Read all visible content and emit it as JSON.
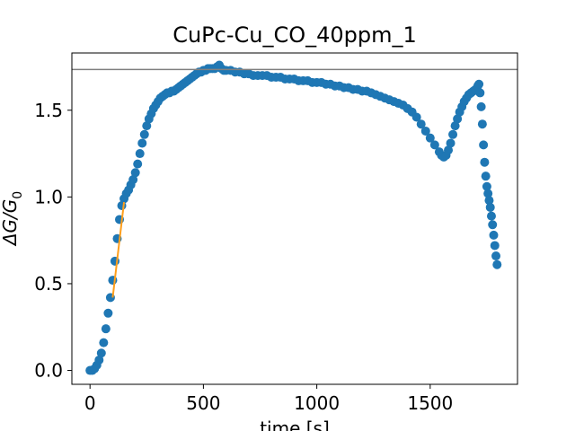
{
  "chart_data": {
    "type": "scatter",
    "title": "CuPc-Cu_CO_40ppm_1",
    "xlabel": "time [s]",
    "ylabel_main": "ΔG/G",
    "ylabel_sub": "0",
    "xlim": [
      -80,
      1885
    ],
    "ylim": [
      -0.08,
      1.83
    ],
    "xticks": [
      0,
      500,
      1000,
      1500
    ],
    "xtick_labels": [
      "0",
      "500",
      "1000",
      "1500"
    ],
    "yticks": [
      0.0,
      0.5,
      1.0,
      1.5
    ],
    "ytick_labels": [
      "0.0",
      "0.5",
      "1.0",
      "1.5"
    ],
    "grid": false,
    "colors": {
      "points": "#1f77b4",
      "fit_line": "#ff9f1c",
      "reference_line": "#808080"
    },
    "reference_line": {
      "y": 1.735
    },
    "fit_line": {
      "x": [
        100,
        150
      ],
      "y": [
        0.42,
        0.97
      ]
    },
    "series": [
      {
        "points": [
          [
            0,
            0
          ],
          [
            10,
            0
          ],
          [
            20,
            0.01
          ],
          [
            30,
            0.03
          ],
          [
            40,
            0.06
          ],
          [
            50,
            0.1
          ],
          [
            60,
            0.16
          ],
          [
            70,
            0.24
          ],
          [
            80,
            0.33
          ],
          [
            90,
            0.42
          ],
          [
            100,
            0.52
          ],
          [
            110,
            0.63
          ],
          [
            120,
            0.76
          ],
          [
            130,
            0.87
          ],
          [
            140,
            0.95
          ],
          [
            150,
            0.99
          ],
          [
            160,
            1.02
          ],
          [
            170,
            1.04
          ],
          [
            180,
            1.07
          ],
          [
            190,
            1.1
          ],
          [
            200,
            1.14
          ],
          [
            210,
            1.19
          ],
          [
            220,
            1.25
          ],
          [
            230,
            1.31
          ],
          [
            240,
            1.36
          ],
          [
            250,
            1.41
          ],
          [
            260,
            1.45
          ],
          [
            270,
            1.48
          ],
          [
            280,
            1.51
          ],
          [
            290,
            1.53
          ],
          [
            300,
            1.55
          ],
          [
            310,
            1.57
          ],
          [
            320,
            1.58
          ],
          [
            330,
            1.59
          ],
          [
            340,
            1.6
          ],
          [
            350,
            1.6
          ],
          [
            360,
            1.61
          ],
          [
            370,
            1.61
          ],
          [
            380,
            1.62
          ],
          [
            390,
            1.63
          ],
          [
            400,
            1.64
          ],
          [
            410,
            1.65
          ],
          [
            420,
            1.66
          ],
          [
            430,
            1.67
          ],
          [
            440,
            1.68
          ],
          [
            450,
            1.69
          ],
          [
            460,
            1.7
          ],
          [
            470,
            1.71
          ],
          [
            480,
            1.72
          ],
          [
            490,
            1.72
          ],
          [
            500,
            1.73
          ],
          [
            510,
            1.73
          ],
          [
            520,
            1.74
          ],
          [
            530,
            1.74
          ],
          [
            540,
            1.74
          ],
          [
            550,
            1.74
          ],
          [
            560,
            1.75
          ],
          [
            570,
            1.76
          ],
          [
            580,
            1.74
          ],
          [
            590,
            1.73
          ],
          [
            600,
            1.73
          ],
          [
            620,
            1.73
          ],
          [
            640,
            1.72
          ],
          [
            660,
            1.72
          ],
          [
            680,
            1.71
          ],
          [
            700,
            1.71
          ],
          [
            720,
            1.7
          ],
          [
            740,
            1.7
          ],
          [
            760,
            1.7
          ],
          [
            780,
            1.7
          ],
          [
            800,
            1.69
          ],
          [
            820,
            1.69
          ],
          [
            840,
            1.69
          ],
          [
            860,
            1.68
          ],
          [
            880,
            1.68
          ],
          [
            900,
            1.68
          ],
          [
            920,
            1.67
          ],
          [
            940,
            1.67
          ],
          [
            960,
            1.67
          ],
          [
            980,
            1.66
          ],
          [
            1000,
            1.66
          ],
          [
            1020,
            1.66
          ],
          [
            1040,
            1.65
          ],
          [
            1060,
            1.65
          ],
          [
            1080,
            1.64
          ],
          [
            1100,
            1.64
          ],
          [
            1120,
            1.63
          ],
          [
            1140,
            1.63
          ],
          [
            1160,
            1.62
          ],
          [
            1180,
            1.62
          ],
          [
            1200,
            1.61
          ],
          [
            1220,
            1.61
          ],
          [
            1240,
            1.6
          ],
          [
            1260,
            1.59
          ],
          [
            1280,
            1.58
          ],
          [
            1300,
            1.57
          ],
          [
            1320,
            1.56
          ],
          [
            1340,
            1.55
          ],
          [
            1360,
            1.54
          ],
          [
            1380,
            1.53
          ],
          [
            1400,
            1.51
          ],
          [
            1420,
            1.49
          ],
          [
            1440,
            1.46
          ],
          [
            1460,
            1.42
          ],
          [
            1480,
            1.38
          ],
          [
            1500,
            1.34
          ],
          [
            1520,
            1.3
          ],
          [
            1540,
            1.26
          ],
          [
            1550,
            1.24
          ],
          [
            1560,
            1.23
          ],
          [
            1570,
            1.24
          ],
          [
            1580,
            1.27
          ],
          [
            1590,
            1.31
          ],
          [
            1600,
            1.36
          ],
          [
            1610,
            1.41
          ],
          [
            1620,
            1.45
          ],
          [
            1630,
            1.49
          ],
          [
            1640,
            1.52
          ],
          [
            1650,
            1.55
          ],
          [
            1660,
            1.57
          ],
          [
            1670,
            1.59
          ],
          [
            1680,
            1.6
          ],
          [
            1690,
            1.61
          ],
          [
            1700,
            1.62
          ],
          [
            1710,
            1.64
          ],
          [
            1715,
            1.65
          ],
          [
            1720,
            1.6
          ],
          [
            1725,
            1.52
          ],
          [
            1730,
            1.42
          ],
          [
            1735,
            1.3
          ],
          [
            1740,
            1.2
          ],
          [
            1745,
            1.12
          ],
          [
            1750,
            1.06
          ],
          [
            1755,
            1.02
          ],
          [
            1760,
            0.98
          ],
          [
            1765,
            0.94
          ],
          [
            1770,
            0.89
          ],
          [
            1775,
            0.84
          ],
          [
            1780,
            0.78
          ],
          [
            1785,
            0.72
          ],
          [
            1790,
            0.66
          ],
          [
            1795,
            0.61
          ]
        ]
      }
    ]
  }
}
